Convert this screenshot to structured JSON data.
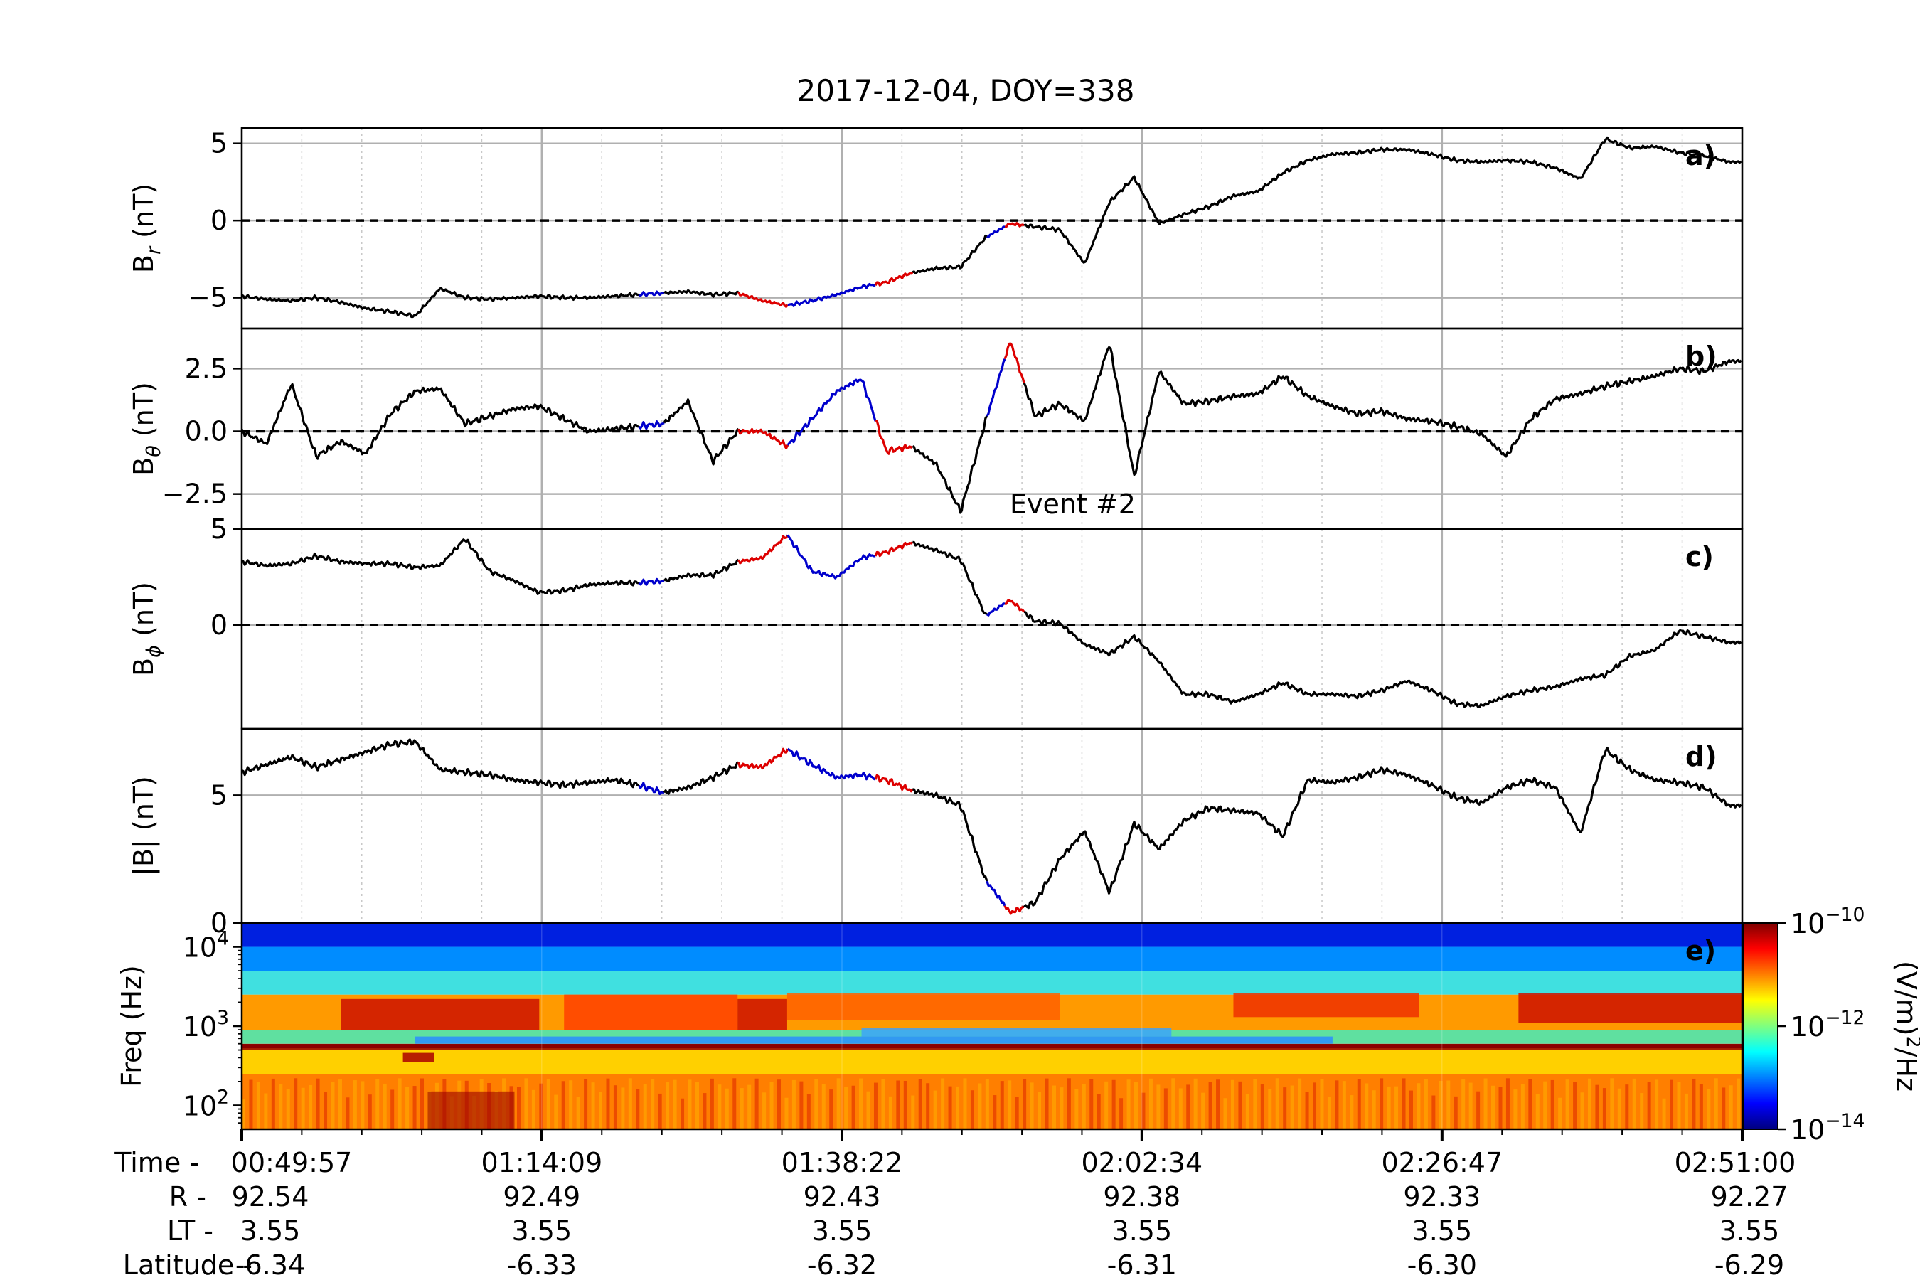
{
  "title": "2017-12-04, DOY=338",
  "chart_data": [
    {
      "type": "line",
      "panel_label": "a)",
      "ylabel": "B_r (nT)",
      "ylabel_main": "B",
      "ylabel_sub": "r",
      "ylabel_unit": " (nT)",
      "ylim": [
        -7,
        6
      ],
      "yticks": [
        -5,
        0,
        5
      ],
      "yticklabels": [
        "−5",
        "0",
        "5"
      ],
      "zero_line": 0,
      "series": [
        {
          "x": [
            0,
            2,
            4,
            6,
            8,
            10,
            12,
            14,
            16,
            18,
            20,
            22,
            24,
            26,
            28,
            30,
            32,
            34,
            36,
            38,
            40,
            42,
            44,
            46,
            48,
            50,
            52,
            54,
            56,
            58,
            60,
            62,
            64,
            66,
            68,
            70,
            72,
            74,
            76,
            78,
            80,
            82,
            84,
            86,
            88,
            90,
            92,
            94,
            96,
            98,
            100,
            102,
            104,
            106,
            108,
            110,
            112,
            114,
            116,
            118,
            120
          ],
          "y": [
            -4.9,
            -5.1,
            -5.2,
            -5.0,
            -5.3,
            -5.7,
            -5.9,
            -6.2,
            -4.4,
            -5.0,
            -5.1,
            -5.0,
            -4.9,
            -5.0,
            -5.0,
            -4.9,
            -4.8,
            -4.7,
            -4.6,
            -4.8,
            -4.7,
            -5.2,
            -5.5,
            -5.2,
            -4.8,
            -4.3,
            -4.0,
            -3.4,
            -3.1,
            -3.0,
            -1.1,
            -0.2,
            -0.4,
            -0.6,
            -2.8,
            1.2,
            2.8,
            -0.2,
            0.4,
            0.9,
            1.6,
            1.9,
            3.1,
            3.9,
            4.3,
            4.4,
            4.6,
            4.6,
            4.3,
            3.9,
            3.8,
            3.9,
            3.8,
            3.4,
            2.7,
            5.3,
            4.7,
            4.8,
            4.4,
            4.2,
            3.8
          ]
        }
      ]
    },
    {
      "type": "line",
      "panel_label": "b)",
      "ylabel": "B_θ (nT)",
      "ylabel_main": "B",
      "ylabel_sub": "θ",
      "ylabel_unit": " (nT)",
      "ylim": [
        -3.9,
        4.1
      ],
      "yticks": [
        -2.5,
        0,
        2.5
      ],
      "yticklabels": [
        "−2.5",
        "0.0",
        "2.5"
      ],
      "zero_line": 0,
      "annotation": "Event #2",
      "series": [
        {
          "x": [
            0,
            2,
            4,
            6,
            8,
            10,
            12,
            14,
            16,
            18,
            20,
            22,
            24,
            26,
            28,
            30,
            32,
            34,
            36,
            38,
            40,
            42,
            44,
            46,
            48,
            50,
            52,
            54,
            56,
            58,
            60,
            62,
            64,
            66,
            68,
            70,
            72,
            74,
            76,
            78,
            80,
            82,
            84,
            86,
            88,
            90,
            92,
            94,
            96,
            98,
            100,
            102,
            104,
            106,
            108,
            110,
            112,
            114,
            116,
            118,
            120
          ],
          "y": [
            0,
            -0.5,
            1.9,
            -1.0,
            -0.4,
            -0.9,
            0.7,
            1.6,
            1.7,
            0.3,
            0.6,
            0.9,
            1.0,
            0.5,
            0.0,
            0.1,
            0.2,
            0.3,
            1.2,
            -1.2,
            0.0,
            0.0,
            -0.6,
            0.5,
            1.6,
            2.1,
            -0.8,
            -0.6,
            -1.3,
            -3.2,
            0.4,
            3.6,
            0.6,
            1.1,
            0.4,
            3.5,
            -1.8,
            2.4,
            1.1,
            1.2,
            1.4,
            1.5,
            2.2,
            1.4,
            1.0,
            0.7,
            0.8,
            0.5,
            0.4,
            0.2,
            -0.1,
            -1.0,
            0.5,
            1.3,
            1.5,
            1.8,
            2.0,
            2.2,
            2.5,
            2.4,
            2.8
          ]
        }
      ]
    },
    {
      "type": "line",
      "panel_label": "c)",
      "ylabel": "B_ϕ (nT)",
      "ylabel_main": "B",
      "ylabel_sub": "ϕ",
      "ylabel_unit": " (nT)",
      "ylim": [
        -5.4,
        5.0
      ],
      "yticks": [
        0,
        5
      ],
      "yticklabels": [
        "0",
        "5"
      ],
      "zero_line": 0,
      "series": [
        {
          "x": [
            0,
            2,
            4,
            6,
            8,
            10,
            12,
            14,
            16,
            18,
            20,
            22,
            24,
            26,
            28,
            30,
            32,
            34,
            36,
            38,
            40,
            42,
            44,
            46,
            48,
            50,
            52,
            54,
            56,
            58,
            60,
            62,
            64,
            66,
            68,
            70,
            72,
            74,
            76,
            78,
            80,
            82,
            84,
            86,
            88,
            90,
            92,
            94,
            96,
            98,
            100,
            102,
            104,
            106,
            108,
            110,
            112,
            114,
            116,
            118,
            120
          ],
          "y": [
            3.3,
            3.1,
            3.2,
            3.6,
            3.3,
            3.2,
            3.2,
            3.0,
            3.1,
            4.5,
            2.8,
            2.3,
            1.7,
            1.8,
            2.1,
            2.2,
            2.2,
            2.3,
            2.6,
            2.6,
            3.3,
            3.5,
            4.7,
            2.8,
            2.5,
            3.5,
            3.8,
            4.3,
            3.9,
            3.4,
            0.5,
            1.3,
            0.2,
            0.1,
            -1.0,
            -1.5,
            -0.6,
            -1.9,
            -3.6,
            -3.6,
            -4.0,
            -3.6,
            -3.0,
            -3.6,
            -3.6,
            -3.7,
            -3.4,
            -2.9,
            -3.4,
            -4.1,
            -4.2,
            -3.7,
            -3.4,
            -3.2,
            -2.8,
            -2.6,
            -1.6,
            -1.3,
            -0.3,
            -0.6,
            -0.9
          ]
        }
      ]
    },
    {
      "type": "line",
      "panel_label": "d)",
      "ylabel": "|B| (nT)",
      "ylabel_main": "|B|",
      "ylabel_sub": "",
      "ylabel_unit": " (nT)",
      "ylim": [
        0,
        7.6
      ],
      "yticks": [
        0,
        5
      ],
      "yticklabels": [
        "0",
        "5"
      ],
      "zero_line": 0,
      "series": [
        {
          "x": [
            0,
            2,
            4,
            6,
            8,
            10,
            12,
            14,
            16,
            18,
            20,
            22,
            24,
            26,
            28,
            30,
            32,
            34,
            36,
            38,
            40,
            42,
            44,
            46,
            48,
            50,
            52,
            54,
            56,
            58,
            60,
            62,
            64,
            66,
            68,
            70,
            72,
            74,
            76,
            78,
            80,
            82,
            84,
            86,
            88,
            90,
            92,
            94,
            96,
            98,
            100,
            102,
            104,
            106,
            108,
            110,
            112,
            114,
            116,
            118,
            120
          ],
          "y": [
            5.9,
            6.2,
            6.5,
            6.1,
            6.4,
            6.7,
            7.0,
            7.1,
            6.0,
            5.9,
            5.8,
            5.6,
            5.5,
            5.4,
            5.5,
            5.6,
            5.4,
            5.1,
            5.3,
            5.7,
            6.2,
            6.1,
            6.8,
            6.2,
            5.7,
            5.8,
            5.6,
            5.2,
            5.0,
            4.6,
            1.7,
            0.4,
            0.8,
            2.5,
            3.6,
            1.2,
            3.9,
            2.9,
            4.0,
            4.5,
            4.4,
            4.3,
            3.4,
            5.6,
            5.5,
            5.7,
            6.0,
            5.8,
            5.4,
            4.9,
            4.7,
            5.3,
            5.6,
            5.3,
            3.5,
            6.8,
            6.0,
            5.6,
            5.5,
            5.3,
            4.6
          ]
        }
      ]
    },
    {
      "type": "heatmap",
      "panel_label": "e)",
      "ylabel": "Freq (Hz)",
      "yscale": "log",
      "ylim": [
        50,
        20000
      ],
      "yticks": [
        100,
        1000,
        10000
      ],
      "yticklabels": [
        {
          "base": "10",
          "exp": "2"
        },
        {
          "base": "10",
          "exp": "3"
        },
        {
          "base": "10",
          "exp": "4"
        }
      ],
      "colorbar": {
        "label_main": "(V/m)",
        "label_sup": "2",
        "label_tail": "/Hz",
        "scale": "log",
        "range": [
          1e-14,
          1e-10
        ],
        "ticklabels": [
          {
            "base": "10",
            "exp": "−10"
          },
          {
            "base": "10",
            "exp": "−12"
          },
          {
            "base": "10",
            "exp": "−14"
          }
        ],
        "colors": [
          "#00007f",
          "#0000ff",
          "#007fff",
          "#00ffff",
          "#7fff7f",
          "#ffff00",
          "#ff7f00",
          "#ff0000",
          "#7f0000"
        ]
      }
    }
  ],
  "xaxis": {
    "xlim": [
      0,
      121.05
    ],
    "ticks_min": [
      0,
      24.2,
      48.42,
      72.62,
      96.83,
      121.05
    ],
    "row_labels": [
      "Time -",
      "R  -",
      "LT -",
      "Latitude -"
    ],
    "time": [
      "00:49:57",
      "01:14:09",
      "01:38:22",
      "02:02:34",
      "02:26:47",
      "02:51:00"
    ],
    "R": [
      "92.54",
      "92.49",
      "92.43",
      "92.38",
      "92.33",
      "92.27"
    ],
    "LT": [
      "3.55",
      "3.55",
      "3.55",
      "3.55",
      "3.55",
      "3.55"
    ],
    "latitude": [
      "-6.34",
      "-6.33",
      "-6.32",
      "-6.31",
      "-6.30",
      "-6.29"
    ]
  },
  "event_intervals": [
    {
      "start": 32,
      "end": 34,
      "color": "#0000cc"
    },
    {
      "start": 40,
      "end": 44,
      "color": "#dd0000"
    },
    {
      "start": 44,
      "end": 51,
      "color": "#0000cc"
    },
    {
      "start": 51,
      "end": 54,
      "color": "#dd0000"
    },
    {
      "start": 60,
      "end": 61.5,
      "color": "#0000cc"
    },
    {
      "start": 61.5,
      "end": 63,
      "color": "#dd0000"
    }
  ],
  "colors": {
    "trace": "#000000",
    "event_red": "#dd0000",
    "event_blue": "#0000cc",
    "annotation": "#0000cc",
    "grid": "#b0b0b0"
  }
}
